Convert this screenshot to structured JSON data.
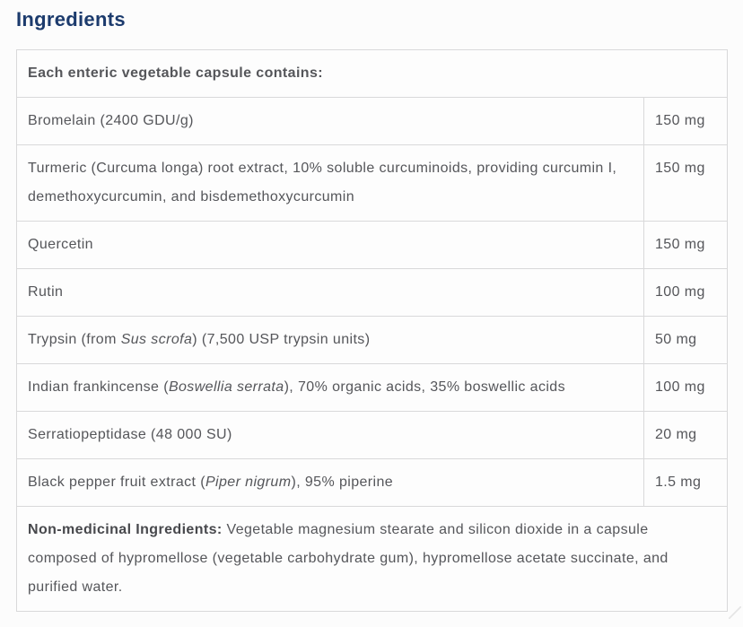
{
  "page": {
    "title": "Ingredients"
  },
  "table": {
    "header": "Each enteric vegetable capsule contains:",
    "rows": [
      {
        "name": [
          {
            "t": "Bromelain (2400 GDU/g)"
          }
        ],
        "amount": "150 mg"
      },
      {
        "name": [
          {
            "t": "Turmeric (Curcuma longa) root extract, 10% soluble curcuminoids, providing curcumin I, demethoxycurcumin, and bisdemethoxycurcumin"
          }
        ],
        "amount": "150 mg"
      },
      {
        "name": [
          {
            "t": "Quercetin"
          }
        ],
        "amount": "150 mg"
      },
      {
        "name": [
          {
            "t": "Rutin"
          }
        ],
        "amount": "100 mg"
      },
      {
        "name": [
          {
            "t": "Trypsin (from "
          },
          {
            "t": "Sus scrofa",
            "i": true
          },
          {
            "t": ") (7,500 USP trypsin units)"
          }
        ],
        "amount": "50 mg"
      },
      {
        "name": [
          {
            "t": "Indian frankincense ("
          },
          {
            "t": "Boswellia serrata",
            "i": true
          },
          {
            "t": "), 70% organic acids, 35% boswellic acids"
          }
        ],
        "amount": "100 mg"
      },
      {
        "name": [
          {
            "t": "Serratiopeptidase (48 000 SU)"
          }
        ],
        "amount": "20 mg"
      },
      {
        "name": [
          {
            "t": "Black pepper fruit extract ("
          },
          {
            "t": "Piper nigrum",
            "i": true
          },
          {
            "t": "), 95% piperine"
          }
        ],
        "amount": "1.5 mg"
      }
    ],
    "footer": {
      "label": "Non-medicinal Ingredients:",
      "text": " Vegetable magnesium stearate and silicon dioxide in a capsule composed of hypromellose (vegetable carbohydrate gum), hypromellose acetate succinate, and purified water."
    }
  },
  "colors": {
    "title": "#1c3b6d",
    "body_text": "#55565a",
    "bold_text": "#47484c",
    "border": "#d9d9da",
    "background": "#fcfcfc"
  }
}
